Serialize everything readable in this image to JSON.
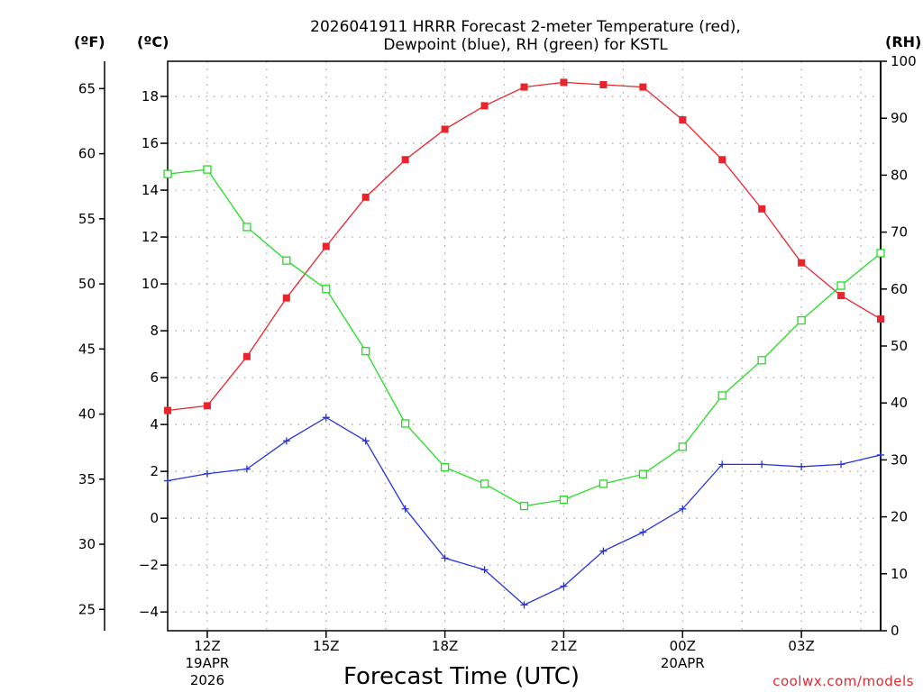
{
  "chart_data": {
    "type": "line",
    "title_line1": "2026041911 HRRR Forecast 2-meter Temperature (red),",
    "title_line2": "Dewpoint (blue), RH (green) for KSTL",
    "xlabel": "Forecast Time (UTC)",
    "credit": "coolwx.com/models",
    "units": {
      "fahrenheit": "(ºF)",
      "celsius": "(ºC)",
      "rh": "(RH)"
    },
    "x_range": [
      11,
      29
    ],
    "y_celsius_range": [
      -4.8,
      19.5
    ],
    "y_rh_range": [
      0,
      100
    ],
    "x_ticks": [
      {
        "x": 12,
        "lines": [
          "12Z",
          "19APR",
          "2026"
        ]
      },
      {
        "x": 15,
        "lines": [
          "15Z"
        ]
      },
      {
        "x": 18,
        "lines": [
          "18Z"
        ]
      },
      {
        "x": 21,
        "lines": [
          "21Z"
        ]
      },
      {
        "x": 24,
        "lines": [
          "00Z",
          "20APR"
        ]
      },
      {
        "x": 27,
        "lines": [
          "03Z"
        ]
      }
    ],
    "y_celsius_ticks": [
      "18",
      "16",
      "14",
      "12",
      "10",
      "8",
      "6",
      "4",
      "2",
      "0",
      "−2",
      "−4"
    ],
    "y_fahrenheit_ticks": [
      "65",
      "60",
      "55",
      "50",
      "45",
      "40",
      "35",
      "30",
      "25"
    ],
    "y_rh_ticks": [
      "100",
      "90",
      "80",
      "70",
      "60",
      "50",
      "40",
      "30",
      "20",
      "10",
      "0"
    ],
    "colors": {
      "temperature": "#e8252c",
      "dewpoint": "#2233e0",
      "rh": "#22dd22",
      "grid": "#a0a0a0"
    },
    "series": [
      {
        "name": "Temperature",
        "unit": "C",
        "x": [
          11,
          12,
          13,
          14,
          15,
          16,
          17,
          18,
          19,
          20,
          21,
          22,
          23,
          24,
          25,
          26,
          27,
          28,
          29
        ],
        "values": [
          4.6,
          4.8,
          6.9,
          9.4,
          11.6,
          13.7,
          15.3,
          16.6,
          17.6,
          18.4,
          18.6,
          18.5,
          18.4,
          17.0,
          15.3,
          13.2,
          10.9,
          9.5,
          8.5
        ]
      },
      {
        "name": "Dewpoint",
        "unit": "C",
        "x": [
          11,
          12,
          13,
          14,
          15,
          16,
          17,
          18,
          19,
          20,
          21,
          22,
          23,
          24,
          25,
          26,
          27,
          28,
          29
        ],
        "values": [
          1.6,
          1.9,
          2.1,
          3.3,
          4.3,
          3.3,
          0.4,
          -1.7,
          -2.2,
          -3.7,
          -2.9,
          -1.4,
          -0.6,
          0.4,
          2.3,
          2.3,
          2.2,
          2.3,
          2.7
        ]
      },
      {
        "name": "RH",
        "unit": "%",
        "x": [
          11,
          12,
          13,
          14,
          15,
          16,
          17,
          18,
          19,
          20,
          21,
          22,
          23,
          24,
          25,
          26,
          27,
          28,
          29
        ],
        "values": [
          80.2,
          81.0,
          70.9,
          65.0,
          60.0,
          49.1,
          36.4,
          28.7,
          25.8,
          21.9,
          23.0,
          25.8,
          27.5,
          32.3,
          41.3,
          47.5,
          54.5,
          60.6,
          66.3
        ]
      }
    ]
  }
}
